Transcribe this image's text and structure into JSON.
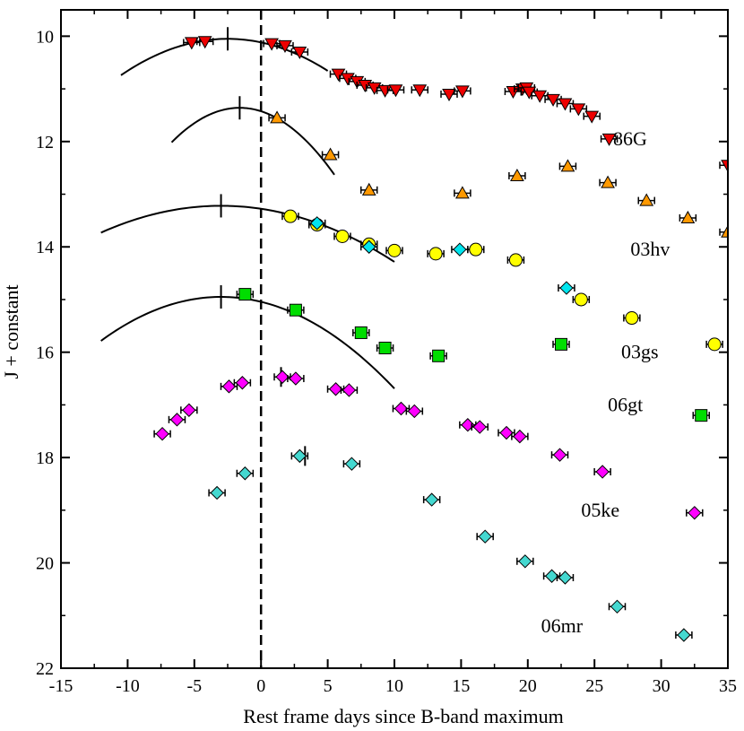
{
  "chart_data": {
    "type": "scatter",
    "title": "",
    "xlabel": "Rest frame days since B-band maximum",
    "ylabel": "J + constant",
    "xlim": [
      -15,
      35
    ],
    "ylim": [
      22,
      9.5
    ],
    "y_inverted": true,
    "xticks": [
      -15,
      -10,
      -5,
      0,
      5,
      10,
      15,
      20,
      25,
      30,
      35
    ],
    "xtick_labels": [
      "-15",
      "-10",
      "-5",
      "0",
      "5",
      "10",
      "15",
      "20",
      "25",
      "30",
      "35"
    ],
    "yticks": [
      10,
      12,
      14,
      16,
      18,
      20,
      22
    ],
    "ytick_labels": [
      "10",
      "12",
      "14",
      "16",
      "18",
      "20",
      "22"
    ],
    "reference_line": {
      "x": 0,
      "style": "dashed"
    },
    "series": [
      {
        "name": "86G",
        "label": "86G",
        "label_pos": [
          26.4,
          11.95
        ],
        "marker": "triangle-down",
        "color": "#ee0000",
        "points": [
          [
            -5.2,
            10.12
          ],
          [
            -4.2,
            10.1
          ],
          [
            0.8,
            10.14
          ],
          [
            1.8,
            10.18
          ],
          [
            2.9,
            10.3
          ],
          [
            5.8,
            10.72
          ],
          [
            6.5,
            10.8
          ],
          [
            7.2,
            10.86
          ],
          [
            7.8,
            10.93
          ],
          [
            8.5,
            10.98
          ],
          [
            9.3,
            11.03
          ],
          [
            10.1,
            11.02
          ],
          [
            11.9,
            11.02
          ],
          [
            14.1,
            11.1
          ],
          [
            15.1,
            11.04
          ],
          [
            18.9,
            11.05
          ],
          [
            19.6,
            11.0
          ],
          [
            19.9,
            10.98
          ],
          [
            20.1,
            11.06
          ],
          [
            20.9,
            11.13
          ],
          [
            21.9,
            11.2
          ],
          [
            22.8,
            11.28
          ],
          [
            23.8,
            11.38
          ],
          [
            24.8,
            11.52
          ],
          [
            26.1,
            11.95
          ],
          [
            35.0,
            12.45
          ]
        ],
        "fit": {
          "peak_day": -2.5,
          "peak_mag": 10.05,
          "curvature": 0.0108,
          "x_range": [
            -10.5,
            5.0
          ]
        }
      },
      {
        "name": "03hv",
        "label": "03hv",
        "label_pos": [
          27.7,
          14.05
        ],
        "marker": "triangle-up",
        "color": "#ff9900",
        "points": [
          [
            1.2,
            11.55
          ],
          [
            5.2,
            12.25
          ],
          [
            8.1,
            12.92
          ],
          [
            15.1,
            12.98
          ],
          [
            19.2,
            12.65
          ],
          [
            23.0,
            12.47
          ],
          [
            26.0,
            12.78
          ],
          [
            28.9,
            13.12
          ],
          [
            32.0,
            13.45
          ],
          [
            35.0,
            13.72
          ]
        ],
        "fit": {
          "peak_day": -1.6,
          "peak_mag": 11.36,
          "curvature": 0.0252,
          "x_range": [
            -6.7,
            5.5
          ]
        }
      },
      {
        "name": "03gs",
        "label": "03gs",
        "label_pos": [
          27.0,
          16.0
        ],
        "marker": "circle",
        "color": "#ffff00",
        "points": [
          [
            2.2,
            13.42
          ],
          [
            4.2,
            13.58
          ],
          [
            6.1,
            13.8
          ],
          [
            8.1,
            13.95
          ],
          [
            10.0,
            14.07
          ],
          [
            13.1,
            14.13
          ],
          [
            16.1,
            14.05
          ],
          [
            19.1,
            14.25
          ],
          [
            24.0,
            15.0
          ],
          [
            27.8,
            15.35
          ],
          [
            34.0,
            15.85
          ]
        ],
        "fit": {
          "peak_day": -3.0,
          "peak_mag": 13.22,
          "curvature": 0.0063,
          "x_range": [
            -12.0,
            10.0
          ]
        }
      },
      {
        "name": "06gt",
        "label": "06gt",
        "label_pos": [
          26.0,
          17.0
        ],
        "marker": "square",
        "color": "#00dd00",
        "points": [
          [
            -1.2,
            14.9
          ],
          [
            2.6,
            15.2
          ],
          [
            7.5,
            15.63
          ],
          [
            9.3,
            15.92
          ],
          [
            13.3,
            16.07
          ],
          [
            22.5,
            15.85
          ],
          [
            33.0,
            17.2
          ]
        ],
        "fit": {
          "peak_day": -3.0,
          "peak_mag": 14.95,
          "curvature": 0.0103,
          "x_range": [
            -12.0,
            10.0
          ]
        }
      },
      {
        "name": "05ke",
        "label": "05ke",
        "label_pos": [
          24.0,
          19.0
        ],
        "marker": "diamond",
        "color": "#ff00ff",
        "points": [
          [
            -7.4,
            17.55
          ],
          [
            -6.3,
            17.28
          ],
          [
            -5.4,
            17.1
          ],
          [
            -2.4,
            16.65
          ],
          [
            -1.4,
            16.58
          ],
          [
            1.6,
            16.47
          ],
          [
            2.6,
            16.5
          ],
          [
            5.6,
            16.7
          ],
          [
            6.6,
            16.72
          ],
          [
            10.5,
            17.07
          ],
          [
            11.5,
            17.12
          ],
          [
            15.5,
            17.38
          ],
          [
            16.4,
            17.42
          ],
          [
            18.4,
            17.53
          ],
          [
            19.4,
            17.6
          ],
          [
            22.4,
            17.95
          ],
          [
            25.6,
            18.27
          ],
          [
            32.5,
            19.05
          ]
        ],
        "peak_marker": {
          "day": 1.5,
          "mag": 16.47
        }
      },
      {
        "name": "06mr",
        "label": "06mr",
        "label_pos": [
          21.0,
          21.2
        ],
        "marker": "diamond",
        "color": "#44d8d0",
        "points": [
          [
            -3.3,
            18.67
          ],
          [
            -1.2,
            18.3
          ],
          [
            2.9,
            17.97
          ],
          [
            6.8,
            18.12
          ],
          [
            12.8,
            18.8
          ],
          [
            16.8,
            19.5
          ],
          [
            19.8,
            19.97
          ],
          [
            21.8,
            20.25
          ],
          [
            22.8,
            20.28
          ],
          [
            26.7,
            20.83
          ],
          [
            31.7,
            21.37
          ]
        ],
        "peak_marker": {
          "day": 3.3,
          "mag": 17.97
        }
      },
      {
        "name": "cyan-extra",
        "label": "",
        "marker": "diamond",
        "color": "#00e5ee",
        "points": [
          [
            4.2,
            13.55
          ],
          [
            8.1,
            14.0
          ],
          [
            14.9,
            14.05
          ],
          [
            22.9,
            14.78
          ]
        ]
      }
    ]
  }
}
